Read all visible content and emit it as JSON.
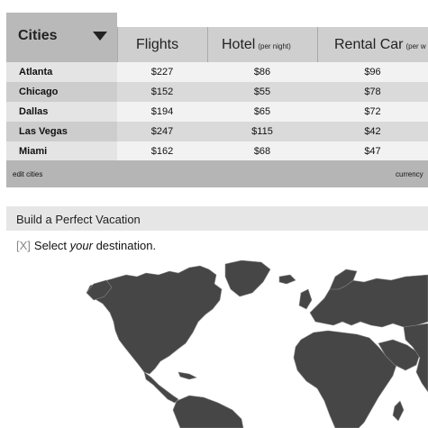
{
  "table": {
    "cities_label": "Cities",
    "columns": {
      "flights": "Flights",
      "hotel": "Hotel",
      "hotel_note": "(per night)",
      "rental_car": "Rental Car",
      "rental_car_note": "(per w"
    },
    "rows": [
      {
        "city": "Atlanta",
        "flights": "$227",
        "hotel": "$86",
        "rental_car": "$96"
      },
      {
        "city": "Chicago",
        "flights": "$152",
        "hotel": "$55",
        "rental_car": "$78"
      },
      {
        "city": "Dallas",
        "flights": "$194",
        "hotel": "$65",
        "rental_car": "$72"
      },
      {
        "city": "Las Vegas",
        "flights": "$247",
        "hotel": "$115",
        "rental_car": "$42"
      },
      {
        "city": "Miami",
        "flights": "$162",
        "hotel": "$68",
        "rental_car": "$47"
      }
    ],
    "footer": {
      "edit_cities": "edit cities",
      "currency": "currency"
    }
  },
  "builder": {
    "title": "Build a Perfect Vacation",
    "step_checkbox": "[X]",
    "step_text_before": "Select ",
    "step_text_em": "your",
    "step_text_after": " destination."
  },
  "colors": {
    "land": "#464646",
    "header": "#cfcfcf",
    "cities_header": "#b9b9b9"
  }
}
